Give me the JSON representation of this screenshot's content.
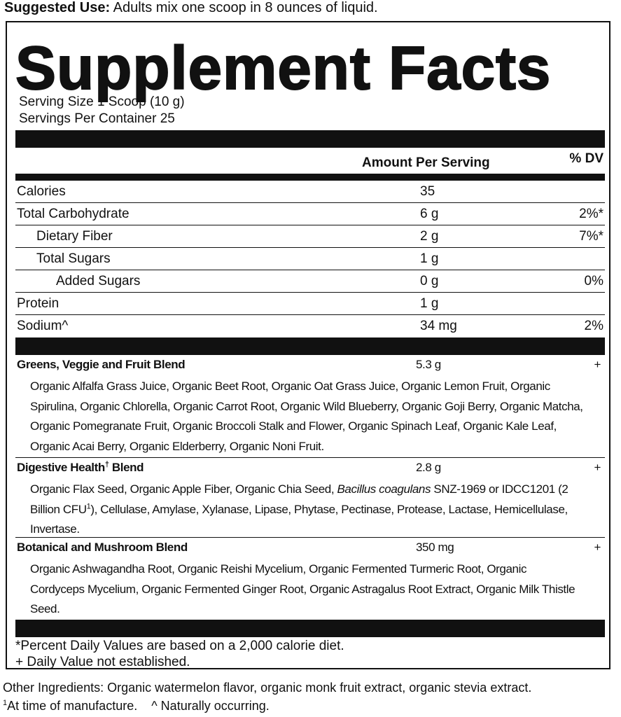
{
  "suggested_use": {
    "label": "Suggested Use:",
    "text": "Adults mix one scoop in 8 ounces of liquid."
  },
  "title": "Supplement Facts",
  "serving_size": "Serving Size 1 Scoop (10 g)",
  "servings_per_container": "Servings Per Container 25",
  "header": {
    "amount": "Amount Per Serving",
    "dv": "% DV"
  },
  "nutrients": [
    {
      "name": "Calories",
      "amount": "35",
      "indent": 0
    },
    {
      "name": "Total Carbohydrate",
      "amount": "6 g",
      "dv": "2%*",
      "indent": 0
    },
    {
      "name": "Dietary Fiber",
      "amount": "2 g",
      "dv": "7%*",
      "indent": 1
    },
    {
      "name": "Total Sugars",
      "amount": "1 g",
      "indent": 1
    },
    {
      "name": "Added Sugars",
      "amount": "0 g",
      "dv": "0%",
      "indent": 2
    },
    {
      "name": "Protein",
      "amount": "1 g",
      "indent": 0
    },
    {
      "name": "Sodium^",
      "amount": "34 mg",
      "dv": "2%",
      "indent": 0
    }
  ],
  "blends": [
    {
      "name": [
        {
          "text": "Greens, Veggie and Fruit Blend"
        }
      ],
      "amount": "5.3 g",
      "dv": "+",
      "ingredients": [
        {
          "text": "Organic Alfalfa Grass Juice, Organic Beet Root, Organic Oat Grass Juice, Organic Lemon Fruit, Organic Spirulina, Organic Chlorella, Organic Carrot Root, Organic Wild Blueberry, Organic Goji Berry, Organic Matcha, Organic Pomegranate Fruit, Organic Broccoli Stalk and Flower, Organic Spinach Leaf, Organic Kale Leaf, Organic Acai Berry, Organic Elderberry, Organic Noni Fruit."
        }
      ]
    },
    {
      "name": [
        {
          "text": "Digestive Health"
        },
        {
          "text": "†",
          "style": "sup"
        },
        {
          "text": " Blend"
        }
      ],
      "amount": "2.8 g",
      "dv": "+",
      "ingredients": [
        {
          "text": "Organic Flax Seed, Organic Apple Fiber, Organic Chia Seed, "
        },
        {
          "text": "Bacillus coagulans",
          "style": "italic"
        },
        {
          "text": " SNZ-1969 or IDCC1201 (2 Billion CFU"
        },
        {
          "text": "1",
          "style": "sup"
        },
        {
          "text": "), Cellulase, Amylase, Xylanase, Lipase, Phytase, Pectinase, Protease, Lactase, Hemicellulase, Invertase."
        }
      ]
    },
    {
      "name": [
        {
          "text": "Botanical and Mushroom Blend"
        }
      ],
      "amount": "350 mg",
      "dv": "+",
      "ingredients": [
        {
          "text": "Organic Ashwagandha Root, Organic Reishi Mycelium, Organic Fermented Turmeric Root, Organic Cordyceps Mycelium, Organic Fermented Ginger Root, Organic Astragalus Root Extract, Organic Milk Thistle Seed."
        }
      ]
    }
  ],
  "footnotes": [
    "*Percent Daily Values are based on a 2,000 calorie diet.",
    "+ Daily Value not established."
  ],
  "other_ingredients": "Other Ingredients: Organic watermelon flavor, organic monk fruit extract, organic stevia extract.",
  "notes": {
    "mark": "1",
    "manufacture": "At time of manufacture.",
    "natural": "^ Naturally occurring."
  }
}
